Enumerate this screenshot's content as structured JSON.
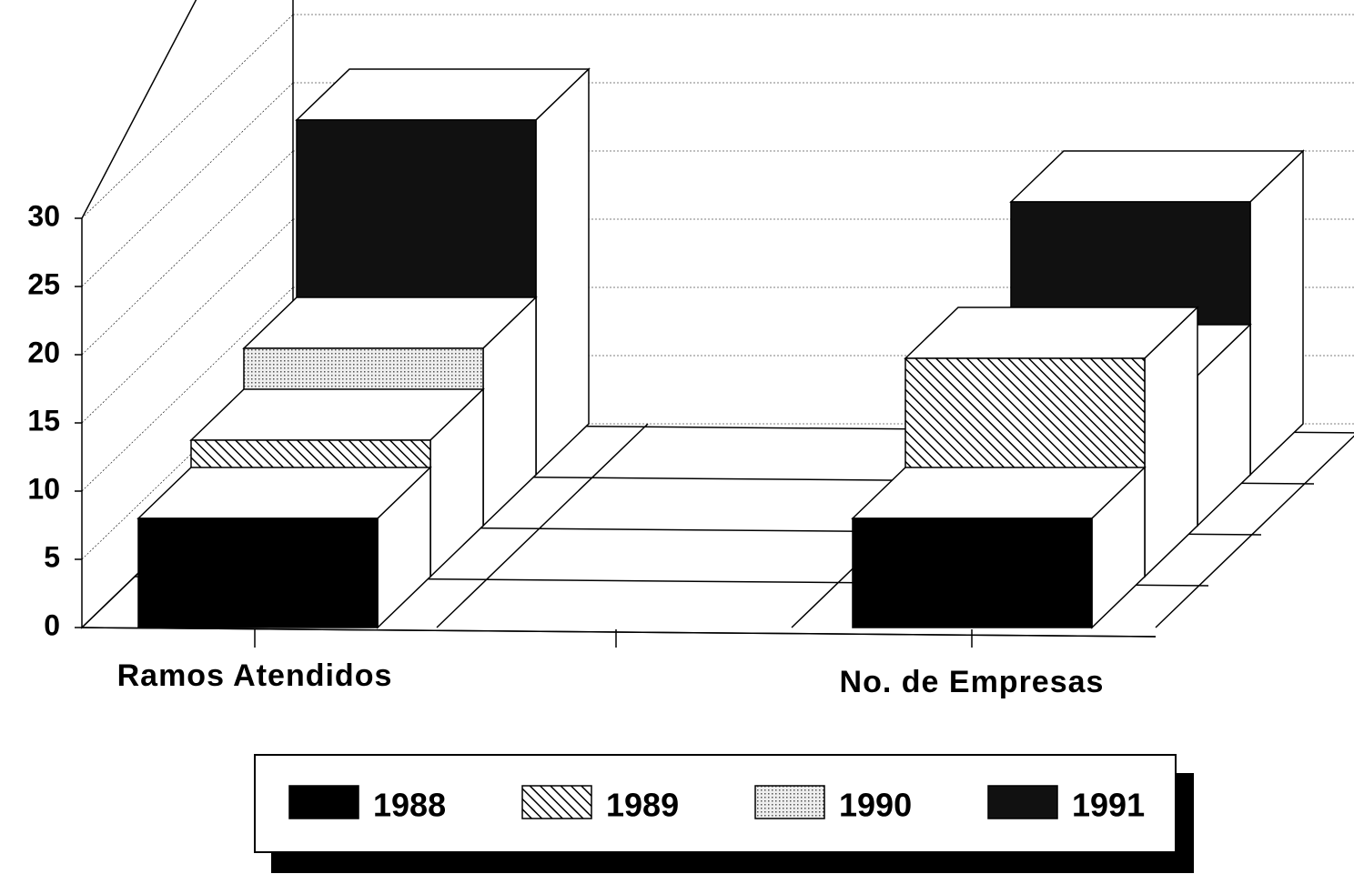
{
  "chart_data": {
    "type": "bar3d",
    "categories": [
      "Ramos Atendidos",
      "No. de Empresas"
    ],
    "series": [
      {
        "name": "1988",
        "color": "#000000",
        "pattern": "solid",
        "values": [
          8,
          8
        ]
      },
      {
        "name": "1989",
        "color": "#000000",
        "pattern": "hatch",
        "values": [
          10,
          16
        ]
      },
      {
        "name": "1990",
        "color": "#000000",
        "pattern": "dots",
        "values": [
          13,
          11
        ]
      },
      {
        "name": "1991",
        "color": "#111111",
        "pattern": "solid",
        "values": [
          26,
          20
        ]
      }
    ],
    "ylim": [
      0,
      30
    ],
    "yticks": [
      0,
      5,
      10,
      15,
      20,
      25,
      30
    ],
    "grid": true,
    "legend": "bottom"
  }
}
